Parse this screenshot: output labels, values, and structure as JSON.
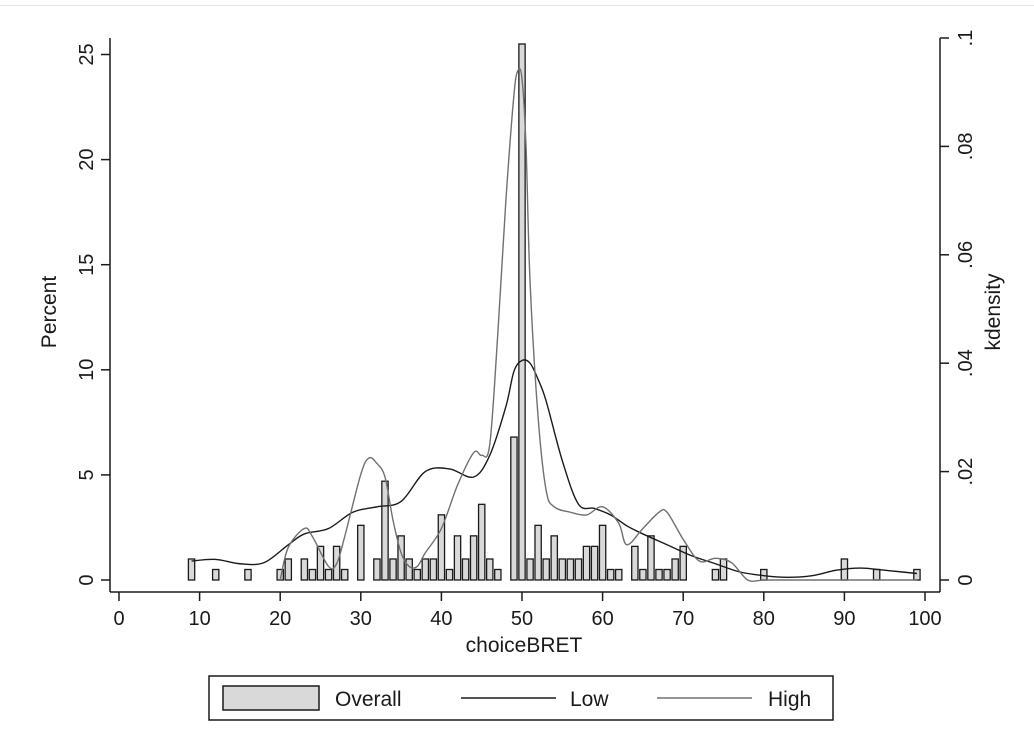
{
  "chart_data": {
    "type": "bar",
    "xlabel": "choiceBRET",
    "ylabel": "Percent",
    "y2label": "kdensity",
    "xlim": [
      0,
      100
    ],
    "ylim": [
      0,
      25.5
    ],
    "y2lim": [
      0,
      0.1
    ],
    "xticks": [
      "0",
      "10",
      "20",
      "30",
      "40",
      "50",
      "60",
      "70",
      "80",
      "90",
      "100"
    ],
    "yticks": [
      "0",
      "5",
      "10",
      "15",
      "20",
      "25"
    ],
    "y2ticks": [
      "0",
      ".02",
      ".04",
      ".06",
      ".08",
      ".1"
    ],
    "bin_width": 1,
    "histogram": {
      "name": "Overall",
      "x": [
        9,
        12,
        16,
        20,
        21,
        23,
        24,
        25,
        26,
        27,
        28,
        30,
        32,
        33,
        34,
        35,
        36,
        37,
        38,
        39,
        40,
        41,
        42,
        43,
        44,
        45,
        46,
        47,
        49,
        50,
        51,
        52,
        53,
        54,
        55,
        56,
        57,
        58,
        59,
        60,
        61,
        62,
        64,
        65,
        66,
        67,
        68,
        69,
        70,
        74,
        75,
        80,
        90,
        94,
        99
      ],
      "values": [
        1.0,
        0.5,
        0.5,
        0.5,
        1.0,
        1.0,
        0.5,
        1.6,
        0.5,
        1.6,
        0.5,
        2.6,
        1.0,
        4.7,
        1.0,
        2.1,
        1.0,
        0.5,
        1.0,
        1.0,
        3.1,
        0.5,
        2.1,
        1.0,
        2.1,
        3.6,
        1.0,
        0.5,
        6.8,
        25.5,
        1.0,
        2.6,
        1.0,
        2.1,
        1.0,
        1.0,
        1.0,
        1.6,
        1.6,
        2.6,
        0.5,
        0.5,
        1.6,
        0.5,
        2.1,
        0.5,
        0.5,
        1.0,
        1.6,
        0.5,
        1.0,
        0.5,
        1.0,
        0.5,
        0.5
      ]
    },
    "series": [
      {
        "name": "Low",
        "x": [
          9,
          12,
          15,
          18,
          21,
          23,
          26,
          29,
          32,
          35,
          38,
          41,
          44,
          46,
          48,
          49,
          50,
          51,
          52,
          53,
          55,
          57,
          59,
          61,
          63,
          65,
          68,
          71,
          74,
          77,
          80,
          83,
          86,
          89,
          92,
          95,
          99
        ],
        "values": [
          0.0035,
          0.0038,
          0.003,
          0.0032,
          0.0065,
          0.0085,
          0.0095,
          0.0125,
          0.0135,
          0.0145,
          0.02,
          0.0205,
          0.019,
          0.023,
          0.032,
          0.0385,
          0.0405,
          0.04,
          0.037,
          0.033,
          0.022,
          0.014,
          0.0132,
          0.012,
          0.01,
          0.0085,
          0.0065,
          0.0045,
          0.003,
          0.0015,
          0.0008,
          0.0005,
          0.0008,
          0.0018,
          0.0022,
          0.0018,
          0.0012
        ]
      },
      {
        "name": "High",
        "x": [
          20,
          21,
          23,
          24,
          26,
          27,
          28,
          30,
          31,
          32,
          33,
          34,
          35,
          36,
          37,
          38,
          40,
          42,
          44,
          45,
          46,
          47,
          48,
          49,
          49.5,
          50,
          50.5,
          51,
          52,
          53,
          54,
          56,
          58,
          60,
          62,
          63,
          65,
          67,
          68,
          70,
          72,
          74,
          76,
          78,
          80,
          83,
          86,
          88,
          90,
          93,
          96,
          99
        ],
        "values": [
          0.0,
          0.006,
          0.0095,
          0.008,
          0.0025,
          0.003,
          0.008,
          0.0195,
          0.0225,
          0.0215,
          0.019,
          0.011,
          0.005,
          0.0025,
          0.0025,
          0.005,
          0.0095,
          0.0175,
          0.0235,
          0.023,
          0.025,
          0.0455,
          0.07,
          0.0895,
          0.094,
          0.0925,
          0.08,
          0.055,
          0.03,
          0.0165,
          0.0135,
          0.0125,
          0.012,
          0.0135,
          0.0105,
          0.0065,
          0.0095,
          0.0125,
          0.0125,
          0.0075,
          0.0035,
          0.004,
          0.0032,
          0.0,
          0.0,
          0.0,
          0.0,
          0.0,
          0.0,
          0.0,
          0.0,
          0.0
        ]
      }
    ],
    "legend": {
      "placement": "bottom",
      "items": [
        {
          "label": "Overall",
          "kind": "bar",
          "fill": "#d9d9d9",
          "stroke": "#1a1a1a"
        },
        {
          "label": "Low",
          "kind": "line",
          "stroke": "#1a1a1a"
        },
        {
          "label": "High",
          "kind": "line",
          "stroke": "#707070"
        }
      ]
    },
    "colors": {
      "bar_fill": "#d9d9d9",
      "bar_stroke": "#1a1a1a",
      "low_line": "#1a1a1a",
      "high_line": "#707070",
      "axis": "#1a1a1a"
    },
    "grid": false
  }
}
